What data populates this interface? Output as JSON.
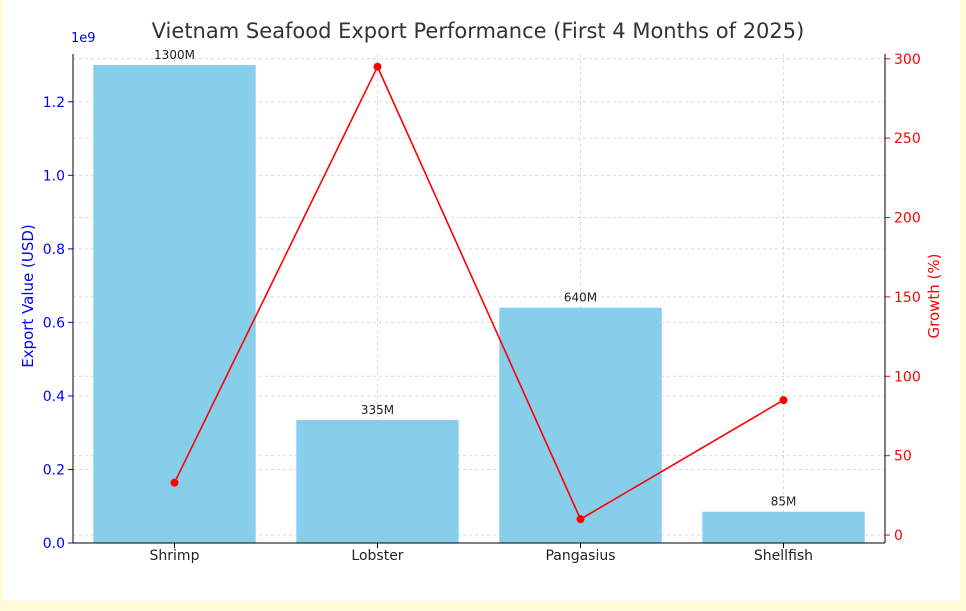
{
  "chart_data": {
    "type": "bar",
    "title": "Vietnam Seafood Export Performance (First 4 Months of 2025)",
    "categories": [
      "Shrimp",
      "Lobster",
      "Pangasius",
      "Shellfish"
    ],
    "series": [
      {
        "values": [
          1300000000,
          335000000,
          640000000,
          85000000
        ],
        "data_labels": [
          "1300M",
          "335M",
          "640M",
          "85M"
        ],
        "axis": "left",
        "color": "#87ceeb"
      },
      {
        "values": [
          33,
          295,
          10,
          85
        ],
        "axis": "right",
        "type": "line",
        "color": "#ff0000"
      }
    ],
    "ylabel": "Export Value (USD)",
    "ylabel_right": "Growth (%)",
    "y_offset_label": "1e9",
    "ylim": [
      0,
      1330000000
    ],
    "yticks": [
      0.0,
      0.2,
      0.4,
      0.6,
      0.8,
      1.0,
      1.2
    ],
    "ytick_labels": [
      "0.0",
      "0.2",
      "0.4",
      "0.6",
      "0.8",
      "1.0",
      "1.2"
    ],
    "ylim_right": [
      -5,
      303
    ],
    "yticks_right": [
      0,
      50,
      100,
      150,
      200,
      250,
      300
    ],
    "ytick_labels_right": [
      "0",
      "50",
      "100",
      "150",
      "200",
      "250",
      "300"
    ],
    "grid": true,
    "colors": {
      "left_axis": "#0000ff",
      "right_axis": "#ff0000",
      "grid": "#d9d9d9",
      "title": "#333333",
      "text": "#222222"
    }
  }
}
